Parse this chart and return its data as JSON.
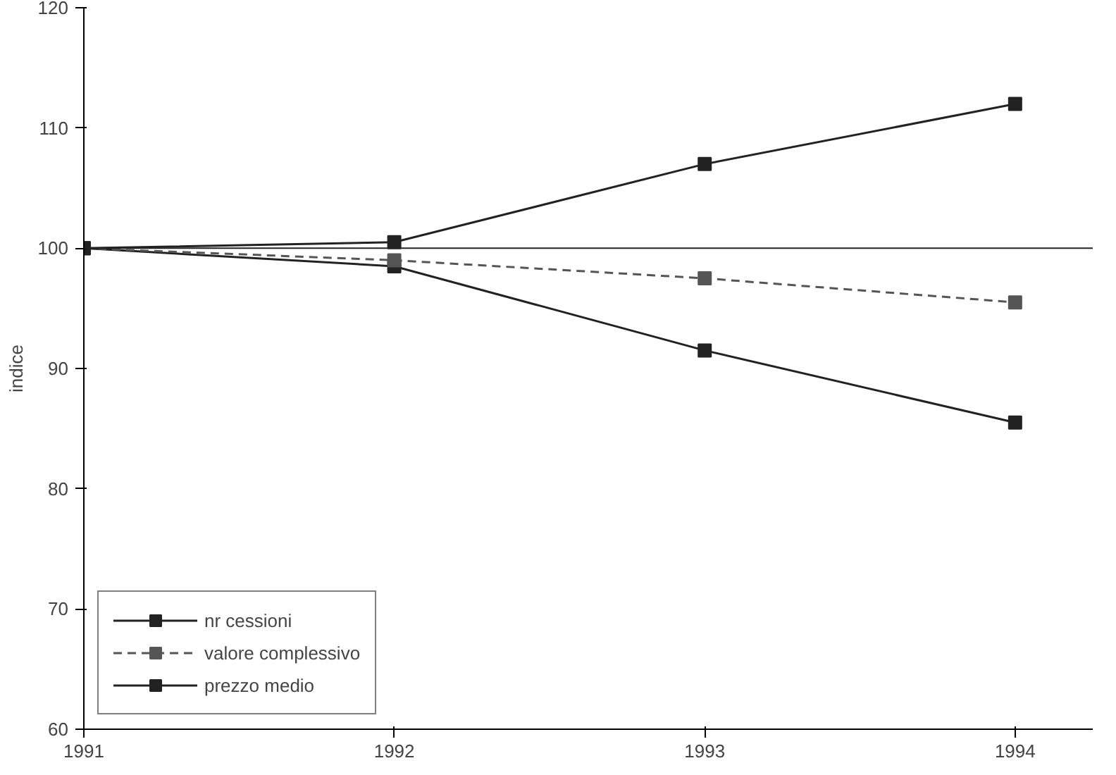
{
  "chart_data": {
    "type": "line",
    "ylabel": "indice",
    "x": [
      1991,
      1992,
      1993,
      1994
    ],
    "xlim": [
      1991,
      1994.25
    ],
    "xticks": [
      1991,
      1992,
      1993,
      1994
    ],
    "ylim": [
      60,
      120
    ],
    "yticks": [
      60,
      70,
      80,
      90,
      100,
      110,
      120
    ],
    "series": [
      {
        "name": "nr cessioni",
        "color": "#222222",
        "values": [
          100,
          100.5,
          107,
          112
        ],
        "line_style": "solid"
      },
      {
        "name": "valore complessivo",
        "color": "#555555",
        "values": [
          100,
          99,
          97.5,
          95.5
        ],
        "line_style": "dashed"
      },
      {
        "name": "prezzo medio",
        "color": "#222222",
        "values": [
          100,
          98.5,
          91.5,
          85.5
        ],
        "line_style": "solid"
      }
    ],
    "ref_lines": [
      {
        "axis": "y",
        "value": 100,
        "color": "#222222"
      }
    ],
    "marker": "square",
    "grid": false,
    "legend": "bottom left"
  }
}
